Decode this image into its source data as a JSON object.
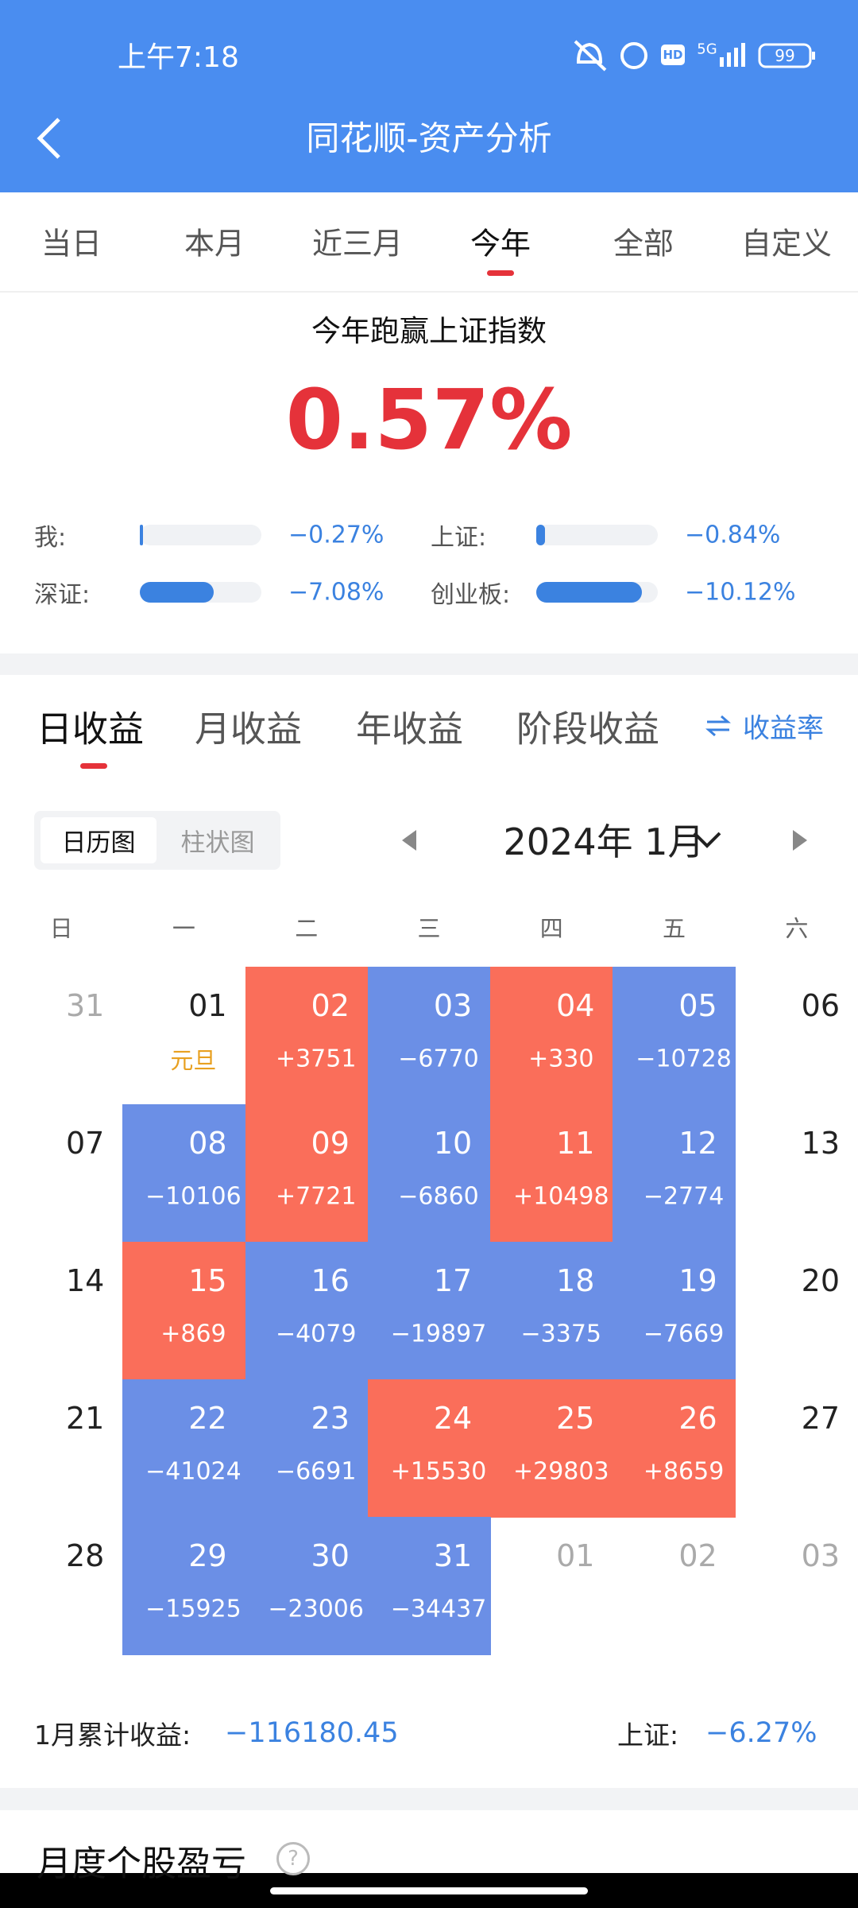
{
  "status_bar": {
    "time": "上午7:18",
    "hd": "HD",
    "network": "5G",
    "battery": "99"
  },
  "header": {
    "title": "同花顺-资产分析"
  },
  "period_tabs": {
    "items": [
      "当日",
      "本月",
      "近三月",
      "今年",
      "全部",
      "自定义"
    ],
    "active": 3
  },
  "summary": {
    "title": "今年跑赢上证指数",
    "value": "0.57%"
  },
  "comparisons": [
    {
      "label": "我:",
      "value": -0.27,
      "value_label": "−0.27%"
    },
    {
      "label": "上证:",
      "value": -0.84,
      "value_label": "−0.84%"
    },
    {
      "label": "深证:",
      "value": -7.08,
      "value_label": "−7.08%"
    },
    {
      "label": "创业板:",
      "value": -10.12,
      "value_label": "−10.12%"
    }
  ],
  "profit_tabs": {
    "items": [
      "日收益",
      "月收益",
      "年收益",
      "阶段收益"
    ],
    "active": 0,
    "toggle": "收益率"
  },
  "view_toggle": {
    "items": [
      "日历图",
      "柱状图"
    ],
    "active": 0
  },
  "calendar": {
    "month": "2024年 1月",
    "weekdays": [
      "日",
      "一",
      "二",
      "三",
      "四",
      "五",
      "六"
    ],
    "weeks": [
      [
        {
          "day": "31",
          "other_month": true
        },
        {
          "day": "01",
          "note": "元旦"
        },
        {
          "day": "02",
          "pnl": "+3751"
        },
        {
          "day": "03",
          "pnl": "−6770"
        },
        {
          "day": "04",
          "pnl": "+330"
        },
        {
          "day": "05",
          "pnl": "−10728"
        },
        {
          "day": "06"
        }
      ],
      [
        {
          "day": "07"
        },
        {
          "day": "08",
          "pnl": "−10106"
        },
        {
          "day": "09",
          "pnl": "+7721"
        },
        {
          "day": "10",
          "pnl": "−6860"
        },
        {
          "day": "11",
          "pnl": "+10498"
        },
        {
          "day": "12",
          "pnl": "−2774"
        },
        {
          "day": "13"
        }
      ],
      [
        {
          "day": "14"
        },
        {
          "day": "15",
          "pnl": "+869"
        },
        {
          "day": "16",
          "pnl": "−4079"
        },
        {
          "day": "17",
          "pnl": "−19897"
        },
        {
          "day": "18",
          "pnl": "−3375"
        },
        {
          "day": "19",
          "pnl": "−7669"
        },
        {
          "day": "20"
        }
      ],
      [
        {
          "day": "21"
        },
        {
          "day": "22",
          "pnl": "−41024"
        },
        {
          "day": "23",
          "pnl": "−6691"
        },
        {
          "day": "24",
          "pnl": "+15530"
        },
        {
          "day": "25",
          "pnl": "+29803"
        },
        {
          "day": "26",
          "pnl": "+8659"
        },
        {
          "day": "27"
        }
      ],
      [
        {
          "day": "28"
        },
        {
          "day": "29",
          "pnl": "−15925"
        },
        {
          "day": "30",
          "pnl": "−23006"
        },
        {
          "day": "31",
          "pnl": "−34437"
        },
        {
          "day": "01",
          "other_month": true
        },
        {
          "day": "02",
          "other_month": true
        },
        {
          "day": "03",
          "other_month": true
        }
      ]
    ]
  },
  "footer": {
    "label": "1月累计收益:",
    "value": "−116180.45",
    "index_label": "上证:",
    "index_value": "−6.27%"
  },
  "next_section": {
    "title": "月度个股盈亏",
    "help": "?"
  }
}
